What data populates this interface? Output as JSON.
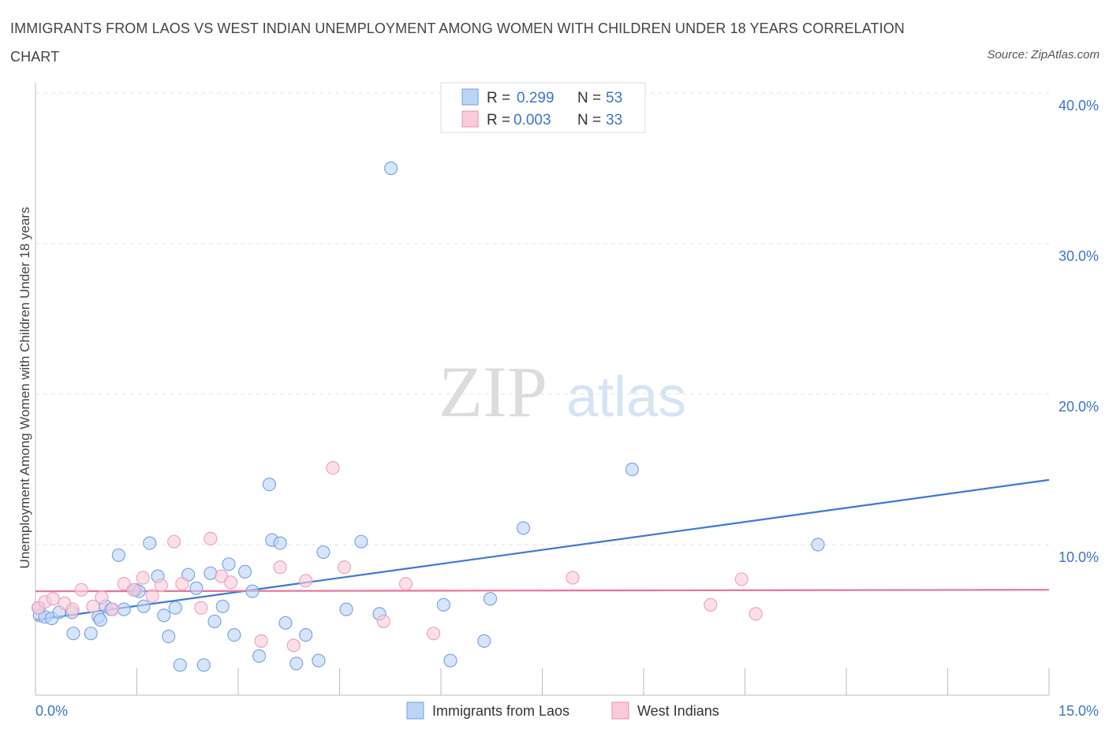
{
  "title": "IMMIGRANTS FROM LAOS VS WEST INDIAN UNEMPLOYMENT AMONG WOMEN WITH CHILDREN UNDER 18 YEARS CORRELATION CHART",
  "source": "Source: ZipAtlas.com",
  "watermark": {
    "zip": "ZIP",
    "atlas": "atlas"
  },
  "legend": {
    "r_label": "R =",
    "n_label": "N =",
    "rows": [
      {
        "r": "0.299",
        "n": "53",
        "color": "#6b9fe0",
        "fill": "#bcd4f6"
      },
      {
        "r": "0.003",
        "n": "33",
        "color": "#ec8fae",
        "fill": "#f9cbdb"
      }
    ]
  },
  "chart_data": {
    "type": "scatter",
    "title": "IMMIGRANTS FROM LAOS VS WEST INDIAN UNEMPLOYMENT AMONG WOMEN WITH CHILDREN UNDER 18 YEARS CORRELATION CHART",
    "xlabel": "",
    "ylabel": "Unemployment Among Women with Children Under 18 years",
    "xlim": [
      0,
      15
    ],
    "ylim": [
      0,
      40
    ],
    "x_tick_labels": [
      "0.0%",
      "15.0%"
    ],
    "y_ticks": [
      10,
      20,
      30,
      40
    ],
    "y_tick_labels": [
      "10.0%",
      "20.0%",
      "30.0%",
      "40.0%"
    ],
    "grid": true,
    "legend_position": "top-center",
    "series": [
      {
        "name": "Immigrants from Laos",
        "color": "#3b78d8",
        "fill": "#bcd4f6",
        "stroke": "#7aa6e4",
        "trend": {
          "x": [
            0,
            15
          ],
          "y": [
            5.0,
            14.3
          ]
        },
        "points": [
          [
            0.06,
            5.3
          ],
          [
            0.14,
            5.2
          ],
          [
            0.24,
            5.1
          ],
          [
            0.35,
            5.5
          ],
          [
            0.54,
            5.5
          ],
          [
            0.56,
            4.1
          ],
          [
            0.82,
            4.1
          ],
          [
            0.93,
            5.2
          ],
          [
            0.96,
            5.0
          ],
          [
            1.04,
            5.9
          ],
          [
            1.12,
            5.7
          ],
          [
            1.23,
            9.3
          ],
          [
            1.31,
            5.7
          ],
          [
            1.48,
            7.0
          ],
          [
            1.53,
            6.9
          ],
          [
            1.6,
            5.9
          ],
          [
            1.69,
            10.1
          ],
          [
            1.81,
            7.9
          ],
          [
            1.9,
            5.3
          ],
          [
            1.97,
            3.9
          ],
          [
            2.07,
            5.8
          ],
          [
            2.14,
            2.0
          ],
          [
            2.26,
            8.0
          ],
          [
            2.38,
            7.1
          ],
          [
            2.49,
            2.0
          ],
          [
            2.59,
            8.1
          ],
          [
            2.65,
            4.9
          ],
          [
            2.77,
            5.9
          ],
          [
            2.86,
            8.7
          ],
          [
            2.94,
            4.0
          ],
          [
            3.1,
            8.2
          ],
          [
            3.21,
            6.9
          ],
          [
            3.31,
            2.6
          ],
          [
            3.46,
            14.0
          ],
          [
            3.5,
            10.3
          ],
          [
            3.62,
            10.1
          ],
          [
            3.7,
            4.8
          ],
          [
            3.86,
            2.1
          ],
          [
            4.0,
            4.0
          ],
          [
            4.19,
            2.3
          ],
          [
            4.26,
            9.5
          ],
          [
            4.6,
            5.7
          ],
          [
            4.82,
            10.2
          ],
          [
            5.09,
            5.4
          ],
          [
            5.26,
            35.0
          ],
          [
            6.04,
            6.0
          ],
          [
            6.14,
            2.3
          ],
          [
            6.64,
            3.6
          ],
          [
            6.73,
            6.4
          ],
          [
            7.22,
            11.1
          ],
          [
            8.83,
            15.0
          ],
          [
            11.58,
            10.0
          ],
          [
            0.05,
            5.8
          ]
        ]
      },
      {
        "name": "West Indians",
        "color": "#e8739a",
        "fill": "#f9cbdb",
        "stroke": "#eea3bd",
        "trend": {
          "x": [
            0,
            15
          ],
          "y": [
            6.9,
            7.0
          ]
        },
        "points": [
          [
            0.04,
            5.8
          ],
          [
            0.14,
            6.2
          ],
          [
            0.26,
            6.4
          ],
          [
            0.43,
            6.1
          ],
          [
            0.55,
            5.7
          ],
          [
            0.68,
            7.0
          ],
          [
            0.85,
            5.9
          ],
          [
            0.98,
            6.5
          ],
          [
            1.14,
            5.7
          ],
          [
            1.31,
            7.4
          ],
          [
            1.45,
            7.0
          ],
          [
            1.59,
            7.8
          ],
          [
            1.73,
            6.6
          ],
          [
            1.86,
            7.3
          ],
          [
            2.05,
            10.2
          ],
          [
            2.17,
            7.4
          ],
          [
            2.45,
            5.8
          ],
          [
            2.59,
            10.4
          ],
          [
            2.75,
            7.9
          ],
          [
            2.89,
            7.5
          ],
          [
            3.34,
            3.6
          ],
          [
            3.62,
            8.5
          ],
          [
            3.82,
            3.3
          ],
          [
            4.0,
            7.6
          ],
          [
            4.4,
            15.1
          ],
          [
            4.57,
            8.5
          ],
          [
            5.15,
            4.9
          ],
          [
            5.48,
            7.4
          ],
          [
            5.89,
            4.1
          ],
          [
            7.95,
            7.8
          ],
          [
            9.99,
            6.0
          ],
          [
            10.45,
            7.7
          ],
          [
            10.66,
            5.4
          ]
        ]
      }
    ]
  },
  "bottom_legend": [
    {
      "label": "Immigrants from Laos"
    },
    {
      "label": "West Indians"
    }
  ]
}
